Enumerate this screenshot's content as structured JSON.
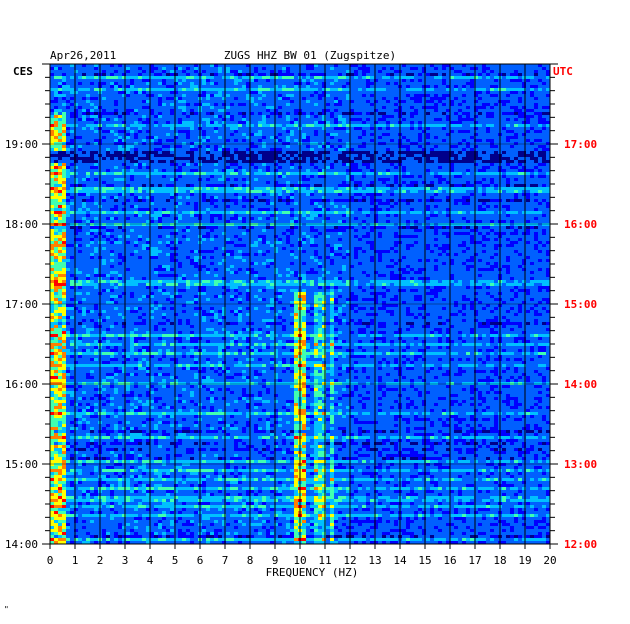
{
  "header": {
    "date": "Apr26,2011",
    "station": "ZUGS HHZ BW 01 (Zugspitze)"
  },
  "chart_data": {
    "type": "heatmap",
    "title": "ZUGS HHZ BW 01 (Zugspitze)",
    "date_label": "Apr26,2011",
    "xlabel": "FREQUENCY (HZ)",
    "xlim": [
      0,
      20
    ],
    "x_ticks": [
      0,
      1,
      2,
      3,
      4,
      5,
      6,
      7,
      8,
      9,
      10,
      11,
      12,
      13,
      14,
      15,
      16,
      17,
      18,
      19,
      20
    ],
    "left_axis": {
      "label": "CES",
      "ticks": [
        "14:00",
        "15:00",
        "16:00",
        "17:00",
        "18:00",
        "19:00"
      ]
    },
    "right_axis": {
      "label": "UTC",
      "color": "#ff0000",
      "ticks": [
        "12:00",
        "13:00",
        "14:00",
        "15:00",
        "16:00",
        "17:00"
      ]
    },
    "colors": [
      "#00008b",
      "#0000ff",
      "#0060ff",
      "#00c0ff",
      "#40ffb0",
      "#ffff00",
      "#ff8000",
      "#ff0000"
    ],
    "features": [
      {
        "desc": "persistent low-frequency energy",
        "freq_range": [
          0,
          0.6
        ],
        "time_range": [
          "14:00",
          "19:25"
        ],
        "level": "high"
      },
      {
        "desc": "narrow band",
        "freq_range": [
          9.8,
          10.3
        ],
        "time_range": [
          "14:00",
          "17:10"
        ],
        "level": "high"
      },
      {
        "desc": "narrow band",
        "freq_range": [
          10.6,
          11.0
        ],
        "time_range": [
          "14:00",
          "17:10"
        ],
        "level": "medium"
      },
      {
        "desc": "narrow band",
        "freq_range": [
          11.2,
          11.4
        ],
        "time_range": [
          "14:00",
          "17:10"
        ],
        "level": "medium"
      },
      {
        "desc": "quiet stripe",
        "time_range": [
          "18:45",
          "18:55"
        ],
        "level": "low"
      }
    ]
  },
  "footnote": "\""
}
